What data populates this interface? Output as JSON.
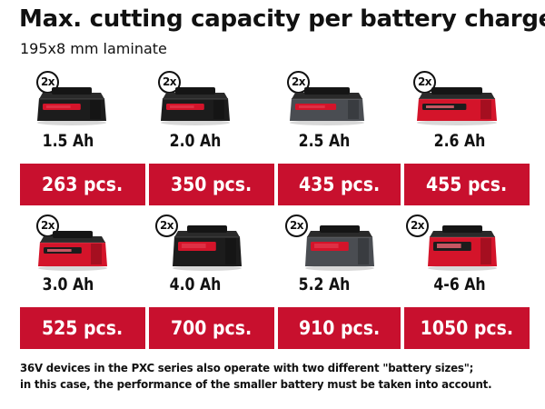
{
  "title": "Max. cutting capacity per battery charge",
  "subtitle": "195x8 mm laminate",
  "badge_label": "2x",
  "batteries": [
    {
      "capacity": "1.5 Ah",
      "pieces": "263 pcs.",
      "style": "compact-dark"
    },
    {
      "capacity": "2.0 Ah",
      "pieces": "350 pcs.",
      "style": "compact-dark"
    },
    {
      "capacity": "2.5 Ah",
      "pieces": "435 pcs.",
      "style": "compact-grey"
    },
    {
      "capacity": "2.6 Ah",
      "pieces": "455 pcs.",
      "style": "compact-red"
    },
    {
      "capacity": "3.0 Ah",
      "pieces": "525 pcs.",
      "style": "compact-red"
    },
    {
      "capacity": "4.0 Ah",
      "pieces": "700 pcs.",
      "style": "large-dark"
    },
    {
      "capacity": "5.2 Ah",
      "pieces": "910 pcs.",
      "style": "large-grey"
    },
    {
      "capacity": "4-6 Ah",
      "pieces": "1050 pcs.",
      "style": "large-red"
    }
  ],
  "footnote": {
    "line1": "36V devices in the PXC series also operate with two different \"battery sizes\";",
    "line2": "in this case, the performance of the smaller battery must be taken into account."
  },
  "colors": {
    "band_red": "#c8102e",
    "battery_red": "#d4142a",
    "battery_dark": "#1c1c1c",
    "battery_grey": "#4a4d52",
    "text": "#111111",
    "band_text": "#ffffff"
  }
}
